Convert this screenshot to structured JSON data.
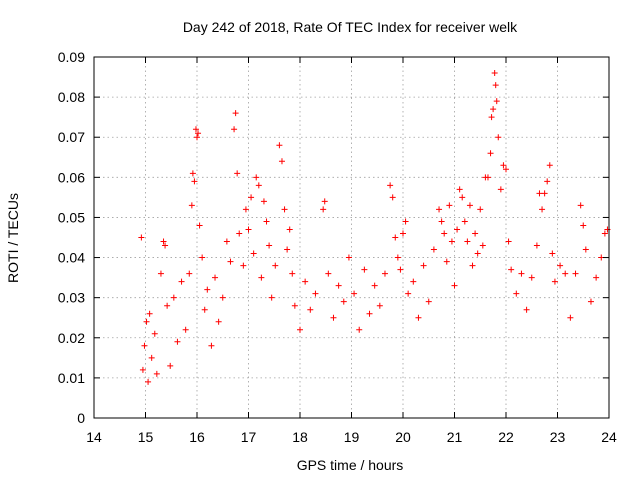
{
  "chart_data": {
    "type": "scatter",
    "title": "Day 242 of 2018, Rate Of TEC Index for receiver welk",
    "xlabel": "GPS time / hours",
    "ylabel": "ROTI / TECUs",
    "xlim": [
      14,
      24
    ],
    "ylim": [
      0,
      0.09
    ],
    "x_ticks": [
      "14",
      "15",
      "16",
      "17",
      "18",
      "19",
      "20",
      "21",
      "22",
      "23",
      "24"
    ],
    "y_ticks": [
      "0",
      "0.01",
      "0.02",
      "0.03",
      "0.04",
      "0.05",
      "0.06",
      "0.07",
      "0.08",
      "0.09"
    ],
    "grid": true,
    "marker": "plus",
    "color": "#ff0000",
    "series": [
      {
        "points": [
          [
            14.92,
            0.045
          ],
          [
            14.95,
            0.012
          ],
          [
            14.98,
            0.018
          ],
          [
            15.02,
            0.024
          ],
          [
            15.05,
            0.009
          ],
          [
            15.08,
            0.026
          ],
          [
            15.12,
            0.015
          ],
          [
            15.18,
            0.021
          ],
          [
            15.22,
            0.011
          ],
          [
            15.3,
            0.036
          ],
          [
            15.35,
            0.044
          ],
          [
            15.38,
            0.043
          ],
          [
            15.42,
            0.028
          ],
          [
            15.48,
            0.013
          ],
          [
            15.55,
            0.03
          ],
          [
            15.62,
            0.019
          ],
          [
            15.7,
            0.034
          ],
          [
            15.78,
            0.022
          ],
          [
            15.85,
            0.036
          ],
          [
            15.9,
            0.053
          ],
          [
            15.92,
            0.061
          ],
          [
            15.95,
            0.059
          ],
          [
            15.98,
            0.072
          ],
          [
            16.0,
            0.07
          ],
          [
            16.02,
            0.071
          ],
          [
            16.05,
            0.048
          ],
          [
            16.1,
            0.04
          ],
          [
            16.15,
            0.027
          ],
          [
            16.2,
            0.032
          ],
          [
            16.28,
            0.018
          ],
          [
            16.35,
            0.035
          ],
          [
            16.42,
            0.024
          ],
          [
            16.5,
            0.03
          ],
          [
            16.58,
            0.044
          ],
          [
            16.65,
            0.039
          ],
          [
            16.72,
            0.072
          ],
          [
            16.75,
            0.076
          ],
          [
            16.78,
            0.061
          ],
          [
            16.82,
            0.046
          ],
          [
            16.9,
            0.038
          ],
          [
            16.95,
            0.052
          ],
          [
            17.0,
            0.047
          ],
          [
            17.05,
            0.055
          ],
          [
            17.1,
            0.041
          ],
          [
            17.15,
            0.06
          ],
          [
            17.2,
            0.058
          ],
          [
            17.25,
            0.035
          ],
          [
            17.3,
            0.054
          ],
          [
            17.35,
            0.049
          ],
          [
            17.4,
            0.043
          ],
          [
            17.45,
            0.03
          ],
          [
            17.52,
            0.038
          ],
          [
            17.6,
            0.068
          ],
          [
            17.65,
            0.064
          ],
          [
            17.7,
            0.052
          ],
          [
            17.75,
            0.042
          ],
          [
            17.8,
            0.047
          ],
          [
            17.85,
            0.036
          ],
          [
            17.9,
            0.028
          ],
          [
            18.0,
            0.022
          ],
          [
            18.1,
            0.034
          ],
          [
            18.2,
            0.027
          ],
          [
            18.3,
            0.031
          ],
          [
            18.45,
            0.052
          ],
          [
            18.48,
            0.054
          ],
          [
            18.55,
            0.036
          ],
          [
            18.65,
            0.025
          ],
          [
            18.75,
            0.033
          ],
          [
            18.85,
            0.029
          ],
          [
            18.95,
            0.04
          ],
          [
            19.05,
            0.031
          ],
          [
            19.15,
            0.022
          ],
          [
            19.25,
            0.037
          ],
          [
            19.35,
            0.026
          ],
          [
            19.45,
            0.033
          ],
          [
            19.55,
            0.028
          ],
          [
            19.65,
            0.036
          ],
          [
            19.75,
            0.058
          ],
          [
            19.8,
            0.055
          ],
          [
            19.85,
            0.045
          ],
          [
            19.9,
            0.04
          ],
          [
            19.95,
            0.037
          ],
          [
            20.0,
            0.046
          ],
          [
            20.05,
            0.049
          ],
          [
            20.1,
            0.031
          ],
          [
            20.2,
            0.034
          ],
          [
            20.3,
            0.025
          ],
          [
            20.4,
            0.038
          ],
          [
            20.5,
            0.029
          ],
          [
            20.6,
            0.042
          ],
          [
            20.7,
            0.052
          ],
          [
            20.75,
            0.049
          ],
          [
            20.8,
            0.046
          ],
          [
            20.85,
            0.039
          ],
          [
            20.9,
            0.053
          ],
          [
            20.95,
            0.044
          ],
          [
            21.0,
            0.033
          ],
          [
            21.05,
            0.047
          ],
          [
            21.1,
            0.057
          ],
          [
            21.15,
            0.055
          ],
          [
            21.2,
            0.049
          ],
          [
            21.25,
            0.044
          ],
          [
            21.3,
            0.053
          ],
          [
            21.35,
            0.038
          ],
          [
            21.4,
            0.046
          ],
          [
            21.45,
            0.041
          ],
          [
            21.5,
            0.052
          ],
          [
            21.55,
            0.043
          ],
          [
            21.6,
            0.06
          ],
          [
            21.65,
            0.06
          ],
          [
            21.7,
            0.066
          ],
          [
            21.72,
            0.075
          ],
          [
            21.75,
            0.077
          ],
          [
            21.78,
            0.086
          ],
          [
            21.8,
            0.083
          ],
          [
            21.82,
            0.079
          ],
          [
            21.85,
            0.07
          ],
          [
            21.9,
            0.057
          ],
          [
            21.95,
            0.063
          ],
          [
            22.0,
            0.062
          ],
          [
            22.05,
            0.044
          ],
          [
            22.1,
            0.037
          ],
          [
            22.2,
            0.031
          ],
          [
            22.3,
            0.036
          ],
          [
            22.4,
            0.027
          ],
          [
            22.5,
            0.035
          ],
          [
            22.6,
            0.043
          ],
          [
            22.65,
            0.056
          ],
          [
            22.7,
            0.052
          ],
          [
            22.75,
            0.056
          ],
          [
            22.8,
            0.059
          ],
          [
            22.85,
            0.063
          ],
          [
            22.9,
            0.041
          ],
          [
            22.95,
            0.034
          ],
          [
            23.05,
            0.038
          ],
          [
            23.15,
            0.036
          ],
          [
            23.25,
            0.025
          ],
          [
            23.35,
            0.036
          ],
          [
            23.45,
            0.053
          ],
          [
            23.5,
            0.048
          ],
          [
            23.55,
            0.042
          ],
          [
            23.65,
            0.029
          ],
          [
            23.75,
            0.035
          ],
          [
            23.85,
            0.04
          ],
          [
            23.92,
            0.046
          ],
          [
            23.97,
            0.047
          ]
        ]
      }
    ]
  }
}
